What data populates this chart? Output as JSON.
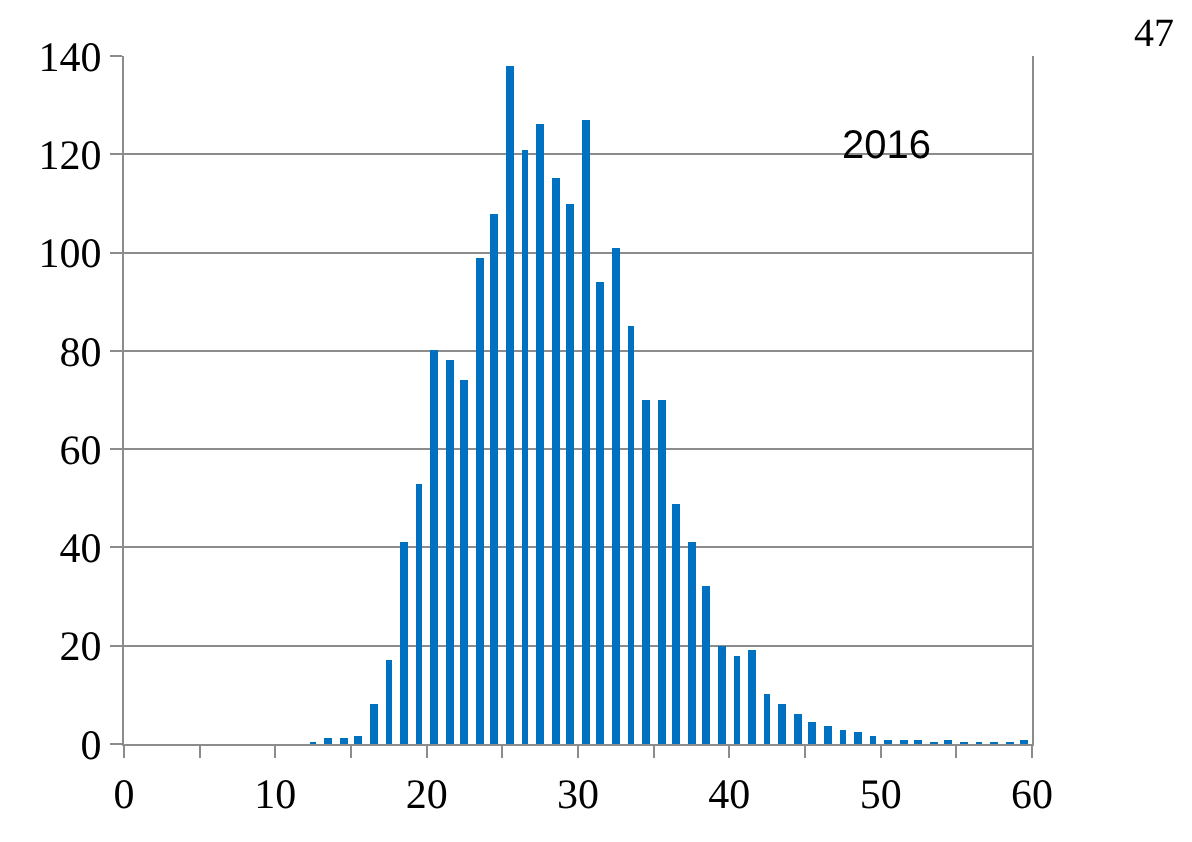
{
  "chart_data": {
    "type": "histogram",
    "bins": [
      0,
      1,
      2,
      3,
      4,
      5,
      6,
      7,
      8,
      9,
      10,
      11,
      12,
      13,
      14,
      15,
      16,
      17,
      18,
      19,
      20,
      21,
      22,
      23,
      24,
      25,
      26,
      27,
      28,
      29,
      30,
      31,
      32,
      33,
      34,
      35,
      36,
      37,
      38,
      39,
      40,
      41,
      42,
      43,
      44,
      45,
      46,
      47,
      48,
      49,
      50,
      51,
      52,
      53,
      54,
      55,
      56,
      57,
      58,
      59,
      60
    ],
    "values": [
      0,
      0,
      0,
      0,
      0,
      0,
      0,
      0,
      0,
      0,
      0,
      0,
      0.2,
      1.1,
      1.3,
      1.5,
      8,
      17,
      41,
      53,
      80,
      78,
      74,
      99,
      108,
      138,
      121,
      126,
      115,
      110,
      127,
      94,
      101,
      85,
      70,
      70,
      49,
      41,
      32,
      20,
      18,
      19,
      10,
      8,
      6,
      4.4,
      3.6,
      3,
      2.4,
      1.7,
      0.9,
      0.7,
      0.7,
      0.3,
      0.5,
      0.2,
      0.1,
      0.1,
      0.1,
      0.5
    ],
    "color": "#0070c0",
    "xlim": [
      0,
      60
    ],
    "xticks": [
      0,
      {
        "value": 5,
        "label": null
      },
      10,
      {
        "value": 15,
        "label": null
      },
      20,
      {
        "value": 25,
        "label": null
      },
      30,
      {
        "value": 35,
        "label": null
      },
      40,
      {
        "value": 45,
        "label": null
      },
      50,
      {
        "value": 55,
        "label": null
      },
      60
    ],
    "ylim": [
      0,
      140
    ],
    "yticks": [
      0,
      20,
      40,
      60,
      80,
      100,
      120,
      140
    ],
    "grid": "y",
    "annotations": [
      "2016",
      "47"
    ]
  }
}
